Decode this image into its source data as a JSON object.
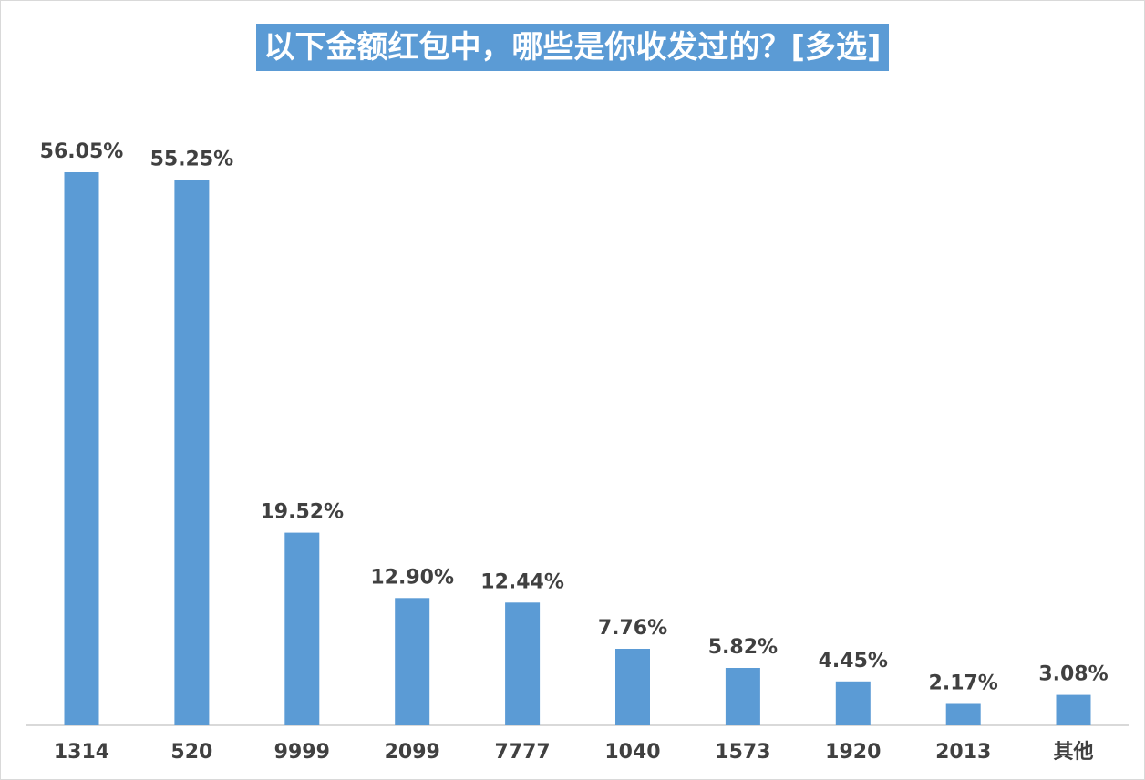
{
  "chart_data": {
    "type": "bar",
    "title": "以下金额红包中，哪些是你收发过的？[多选]",
    "categories": [
      "1314",
      "520",
      "9999",
      "2099",
      "7777",
      "1040",
      "1573",
      "1920",
      "2013",
      "其他"
    ],
    "values": [
      56.05,
      55.25,
      19.52,
      12.9,
      12.44,
      7.76,
      5.82,
      4.45,
      2.17,
      3.08
    ],
    "value_labels": [
      "56.05%",
      "55.25%",
      "19.52%",
      "12.90%",
      "12.44%",
      "7.76%",
      "5.82%",
      "4.45%",
      "2.17%",
      "3.08%"
    ],
    "ylim": [
      0,
      56.05
    ],
    "grid": false,
    "legend": "none",
    "bar_color": "#5b9bd5",
    "title_bg_color": "#5b9bd5",
    "label_color": "#404040"
  }
}
